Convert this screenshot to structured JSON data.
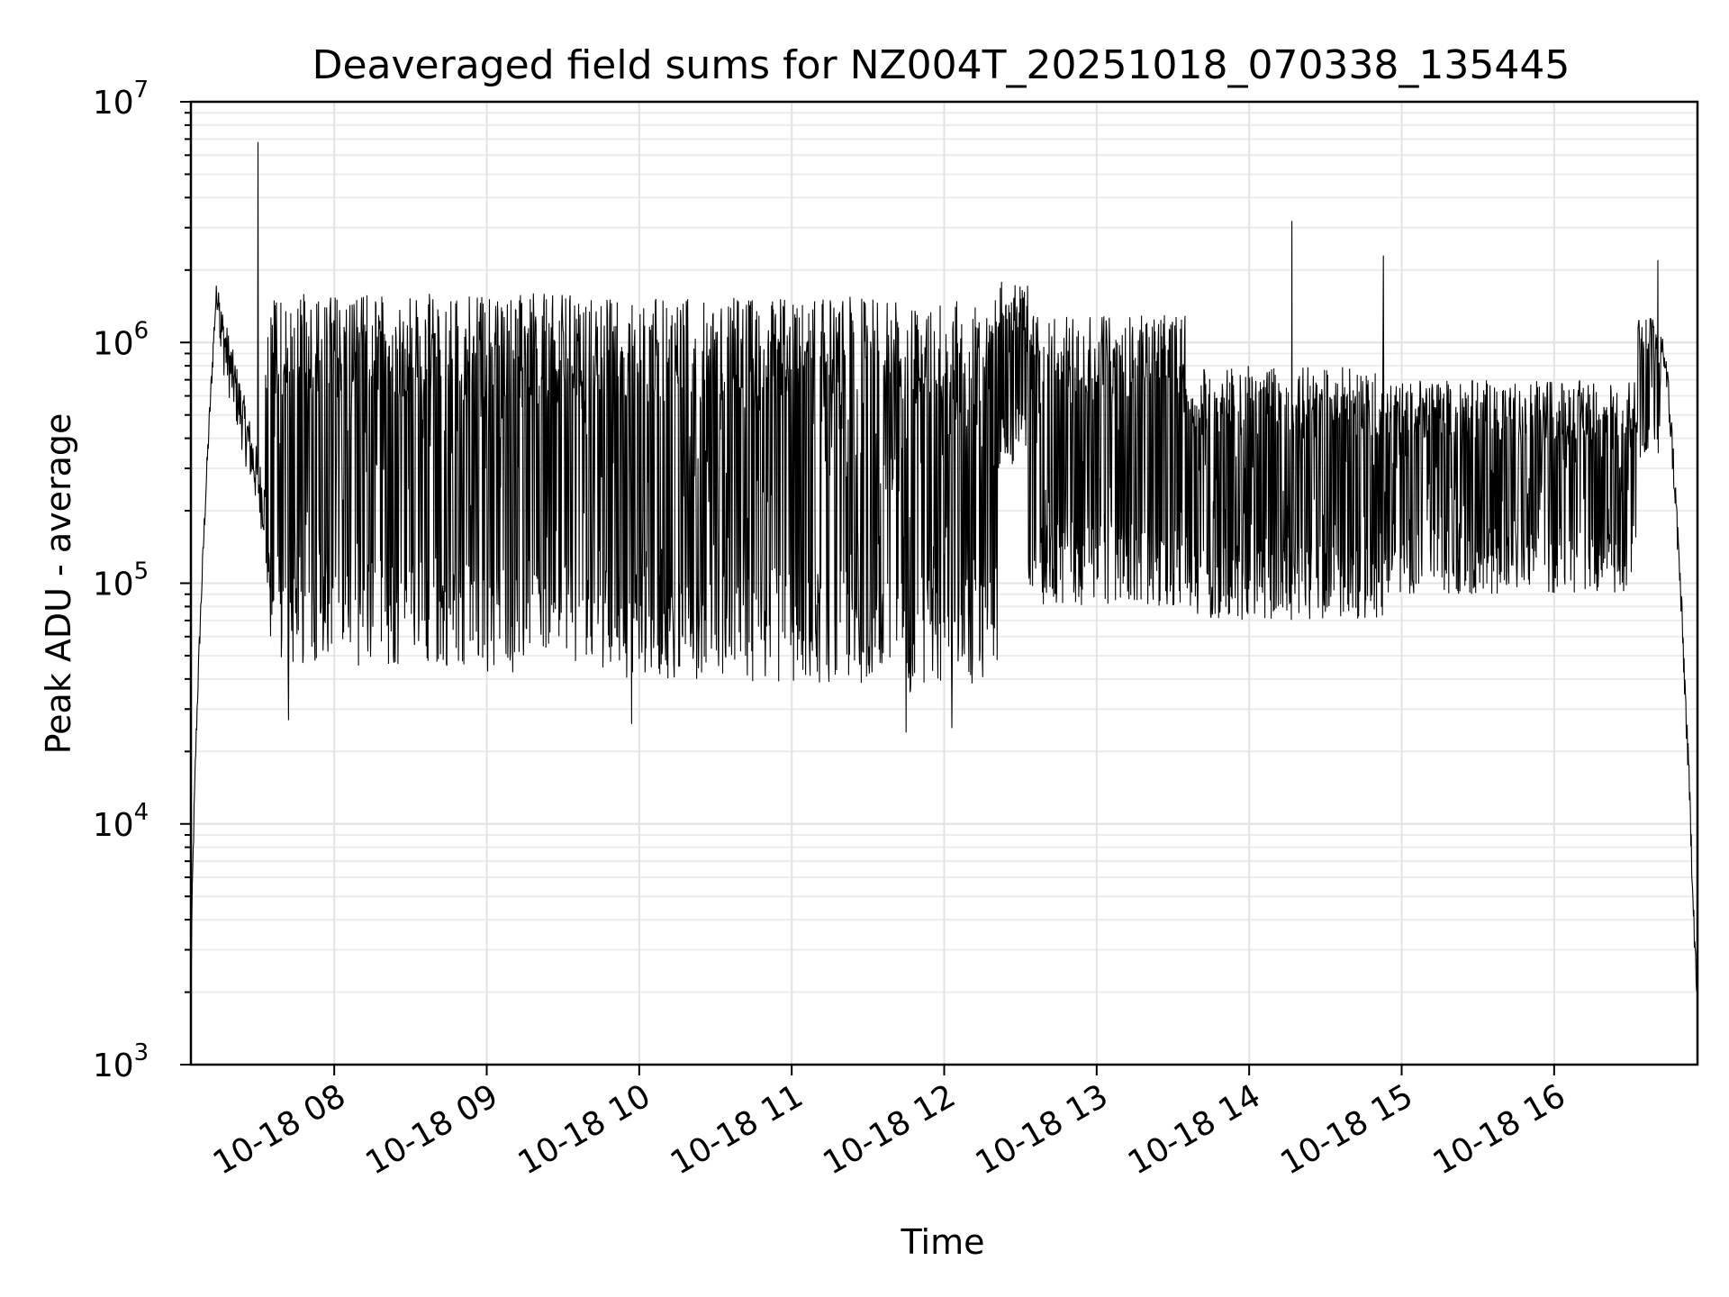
{
  "chart_data": {
    "type": "line",
    "title": "Deaveraged field sums for NZ004T_20251018_070338_135445",
    "xlabel": "Time",
    "ylabel": "Peak ADU - average",
    "yscale": "log",
    "ylim": [
      1000,
      10000000
    ],
    "xlim_hours": [
      7.06,
      16.94
    ],
    "grid": true,
    "y_ticks": [
      {
        "value": 1000,
        "base": "10",
        "exp": "3"
      },
      {
        "value": 10000,
        "base": "10",
        "exp": "4"
      },
      {
        "value": 100000,
        "base": "10",
        "exp": "5"
      },
      {
        "value": 1000000,
        "base": "10",
        "exp": "6"
      },
      {
        "value": 10000000,
        "base": "10",
        "exp": "7"
      }
    ],
    "x_ticks": [
      {
        "value": 8,
        "label": "10-18 08"
      },
      {
        "value": 9,
        "label": "10-18 09"
      },
      {
        "value": 10,
        "label": "10-18 10"
      },
      {
        "value": 11,
        "label": "10-18 11"
      },
      {
        "value": 12,
        "label": "10-18 12"
      },
      {
        "value": 13,
        "label": "10-18 13"
      },
      {
        "value": 14,
        "label": "10-18 14"
      },
      {
        "value": 15,
        "label": "10-18 15"
      },
      {
        "value": 16,
        "label": "10-18 16"
      }
    ],
    "series": [
      {
        "name": "deaveraged field sums",
        "color": "#000000",
        "segments": [
          {
            "t0": 7.06,
            "t1": 7.25,
            "lo": 1500,
            "hi": 1550000,
            "kind": "rise"
          },
          {
            "t0": 7.25,
            "t1": 7.55,
            "lo": 200000,
            "hi": 1200000,
            "kind": "decay"
          },
          {
            "t0": 7.55,
            "t1": 8.8,
            "lo": 45000,
            "hi": 1600000,
            "kind": "noisy"
          },
          {
            "t0": 8.8,
            "t1": 9.7,
            "lo": 42000,
            "hi": 1600000,
            "kind": "noisy"
          },
          {
            "t0": 9.7,
            "t1": 10.6,
            "lo": 40000,
            "hi": 1550000,
            "kind": "noisy"
          },
          {
            "t0": 10.6,
            "t1": 11.6,
            "lo": 38000,
            "hi": 1550000,
            "kind": "noisy"
          },
          {
            "t0": 11.6,
            "t1": 12.35,
            "lo": 35000,
            "hi": 1500000,
            "kind": "noisy"
          },
          {
            "t0": 12.35,
            "t1": 12.55,
            "lo": 300000,
            "hi": 1800000,
            "kind": "noisy"
          },
          {
            "t0": 12.55,
            "t1": 13.6,
            "lo": 80000,
            "hi": 1300000,
            "kind": "noisy"
          },
          {
            "t0": 13.6,
            "t1": 14.9,
            "lo": 70000,
            "hi": 800000,
            "kind": "noisy"
          },
          {
            "t0": 14.9,
            "t1": 16.55,
            "lo": 90000,
            "hi": 700000,
            "kind": "noisy"
          },
          {
            "t0": 16.55,
            "t1": 16.7,
            "lo": 300000,
            "hi": 1300000,
            "kind": "noisy"
          },
          {
            "t0": 16.7,
            "t1": 16.94,
            "lo": 1600,
            "hi": 1000000,
            "kind": "fall"
          }
        ],
        "spikes": [
          {
            "t": 7.5,
            "value": 6800000
          },
          {
            "t": 14.28,
            "value": 3200000
          },
          {
            "t": 14.88,
            "value": 2300000
          },
          {
            "t": 16.68,
            "value": 2200000
          },
          {
            "t": 7.7,
            "value": 27000
          },
          {
            "t": 9.95,
            "value": 26000
          },
          {
            "t": 11.75,
            "value": 24000
          },
          {
            "t": 12.05,
            "value": 25000
          }
        ]
      }
    ]
  }
}
